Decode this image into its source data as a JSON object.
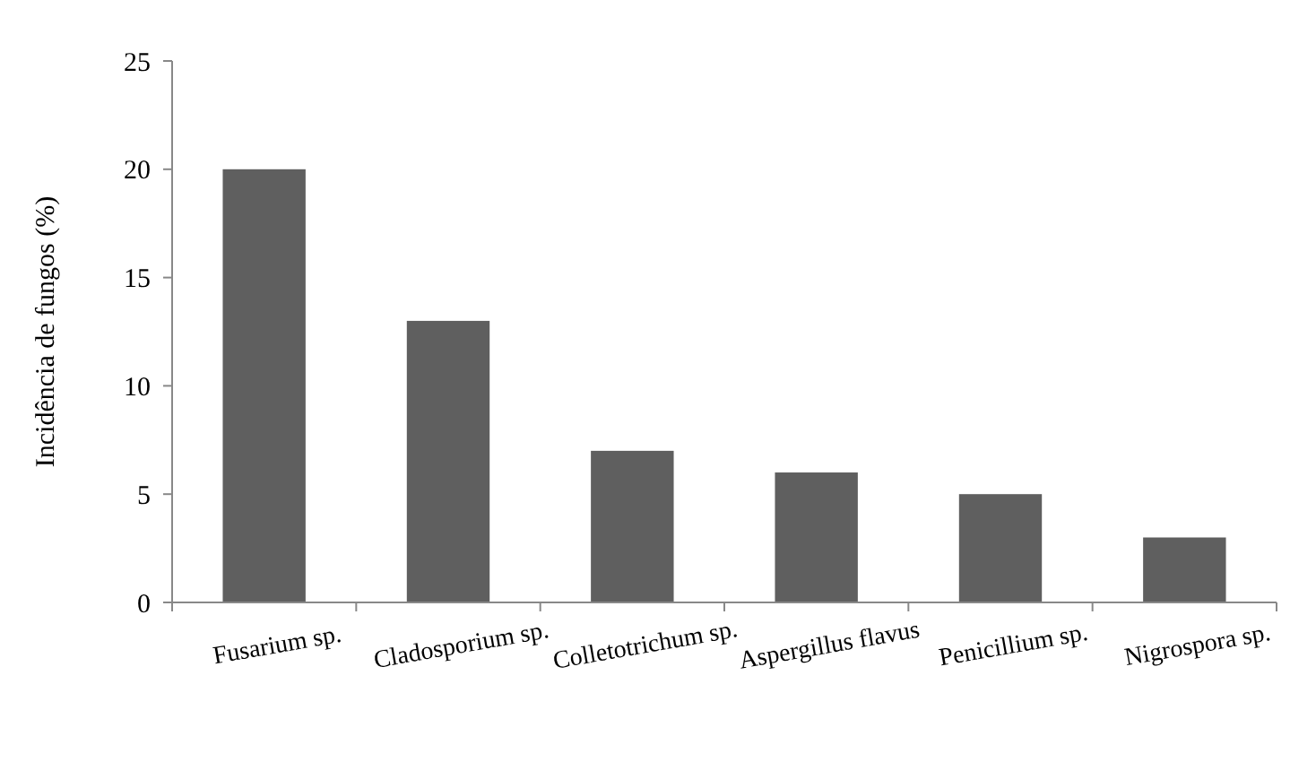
{
  "chart_data": {
    "type": "bar",
    "ylabel": "Incidência de fungos  (%)",
    "categories": [
      "Fusarium sp.",
      "Cladosporium sp.",
      "Colletotrichum sp.",
      "Aspergillus flavus",
      "Penicillium sp.",
      "Nigrospora sp."
    ],
    "values": [
      20,
      13,
      7,
      6,
      5,
      3
    ],
    "color": "#5f5f5f",
    "ylim": [
      0,
      25
    ],
    "yticks": [
      0,
      5,
      10,
      15,
      20,
      25
    ],
    "grid": false
  }
}
